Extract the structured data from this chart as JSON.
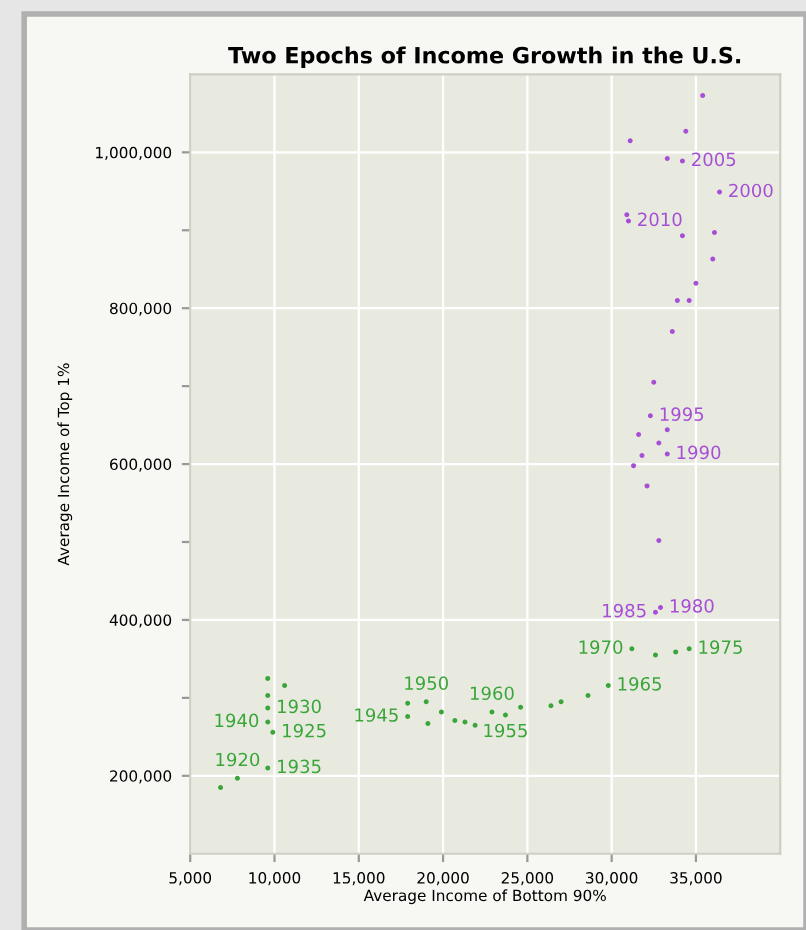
{
  "chart_data": {
    "type": "scatter",
    "title": "Two Epochs of Income Growth in the U.S.",
    "xlabel": "Average Income of Bottom 90%",
    "ylabel": "Average Income of Top 1%",
    "xlim": [
      5000,
      40000
    ],
    "ylim": [
      100000,
      1100000
    ],
    "xticks": [
      {
        "value": 5000,
        "label": "5,000"
      },
      {
        "value": 10000,
        "label": "10,000"
      },
      {
        "value": 15000,
        "label": "15,000"
      },
      {
        "value": 20000,
        "label": "20,000"
      },
      {
        "value": 25000,
        "label": "25,000"
      },
      {
        "value": 30000,
        "label": "30,000"
      },
      {
        "value": 35000,
        "label": "35,000"
      }
    ],
    "yticks": [
      {
        "value": 200000,
        "label": "200,000"
      },
      {
        "value": 300000,
        "label": null
      },
      {
        "value": 400000,
        "label": "400,000"
      },
      {
        "value": 500000,
        "label": null
      },
      {
        "value": 600000,
        "label": "600,000"
      },
      {
        "value": 700000,
        "label": null
      },
      {
        "value": 800000,
        "label": "800,000"
      },
      {
        "value": 900000,
        "label": null
      },
      {
        "value": 1000000,
        "label": "1,000,000"
      }
    ],
    "grid": true,
    "marker": "circle",
    "series": [
      {
        "color": "#3aa63a",
        "x": [
          6800,
          7800,
          9600,
          9600,
          9600,
          9600,
          9600,
          10600,
          9900,
          17900,
          19000,
          17900,
          19100,
          19900,
          20700,
          21300,
          21900,
          22900,
          23700,
          24600,
          26400,
          27000,
          28600,
          29800,
          31200,
          32600,
          33800,
          34600
        ],
        "values": [
          185000,
          197000,
          210000,
          325000,
          303000,
          287000,
          269000,
          316000,
          256000,
          293000,
          295000,
          276000,
          267000,
          282000,
          271000,
          269000,
          265000,
          282000,
          278000,
          288000,
          290000,
          295000,
          303000,
          316000,
          363000,
          355000,
          359000,
          363000
        ]
      },
      {
        "color": "#a64fd6",
        "x": [
          32600,
          32900,
          33600,
          32500,
          32300,
          33300,
          31600,
          32800,
          31800,
          33300,
          31300,
          32100,
          32800,
          35400,
          34400,
          31100,
          33300,
          34200,
          36400,
          30900,
          31000,
          34200,
          36100,
          36000,
          35000,
          33900,
          34600
        ],
        "values": [
          410000,
          416000,
          770000,
          705000,
          662000,
          644000,
          638000,
          627000,
          611000,
          613000,
          598000,
          572000,
          502000,
          1073000,
          1027000,
          1015000,
          992000,
          989000,
          949000,
          920000,
          912000,
          893000,
          897000,
          863000,
          832000,
          810000,
          810000
        ]
      }
    ],
    "annotations": [
      {
        "text": "1920",
        "x": 7800,
        "y": 197000
      },
      {
        "text": "1930",
        "x": 9600,
        "y": 287000
      },
      {
        "text": "1940",
        "x": 9600,
        "y": 269000
      },
      {
        "text": "1925",
        "x": 9900,
        "y": 256000
      },
      {
        "text": "1935",
        "x": 9600,
        "y": 210000
      },
      {
        "text": "1945",
        "x": 17900,
        "y": 276000
      },
      {
        "text": "1950",
        "x": 19000,
        "y": 295000
      },
      {
        "text": "1960",
        "x": 22900,
        "y": 282000
      },
      {
        "text": "1955",
        "x": 23700,
        "y": 278000
      },
      {
        "text": "1965",
        "x": 29800,
        "y": 316000
      },
      {
        "text": "1970",
        "x": 31200,
        "y": 363000
      },
      {
        "text": "1975",
        "x": 34600,
        "y": 363000
      },
      {
        "text": "1980",
        "x": 32900,
        "y": 416000
      },
      {
        "text": "1985",
        "x": 32600,
        "y": 410000
      },
      {
        "text": "1995",
        "x": 32300,
        "y": 662000
      },
      {
        "text": "1990",
        "x": 33300,
        "y": 613000
      },
      {
        "text": "2005",
        "x": 34200,
        "y": 989000
      },
      {
        "text": "2000",
        "x": 36400,
        "y": 949000
      },
      {
        "text": "2010",
        "x": 31000,
        "y": 912000
      }
    ]
  }
}
